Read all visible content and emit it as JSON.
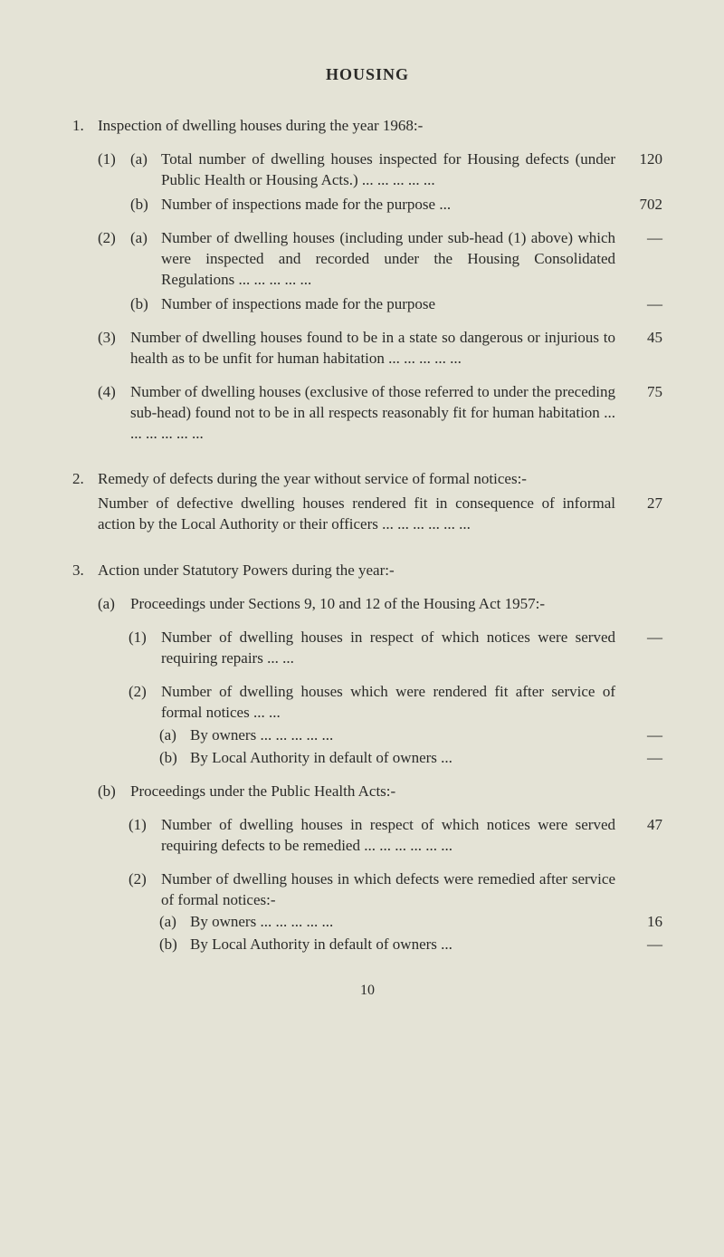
{
  "title": "HOUSING",
  "sec1": {
    "head": "Inspection of dwelling houses during the year 1968:-",
    "i1a": "Total number of dwelling houses inspected for Housing defects (under Public Health or Housing Acts.)   ...   ...   ...   ...   ...",
    "i1a_v": "120",
    "i1b": "Number of inspections made for the purpose ...",
    "i1b_v": "702",
    "i2a": "Number of dwelling houses (including under sub-head (1) above) which were inspected and recorded under the Housing Consolidated Regulations   ...   ...   ...   ...   ...",
    "i2a_v": "—",
    "i2b": "Number of inspections made for the purpose",
    "i2b_v": "—",
    "i3": "Number of dwelling houses found to be in a state so dangerous or injurious to health as to be unfit for human habitation ...   ...   ...   ...   ...",
    "i3_v": "45",
    "i4": "Number of dwelling houses (exclusive of those referred to under the preceding sub-head) found not to be in all respects reasonably fit for human habitation   ...   ...   ...   ...   ...   ...",
    "i4_v": "75"
  },
  "sec2": {
    "head": "Remedy of defects during the year without service of formal notices:-",
    "body": "Number of defective dwelling houses rendered fit in consequence of informal action by the Local Authority or their officers   ...   ...   ...   ...   ...   ...",
    "v": "27"
  },
  "sec3": {
    "head": "Action under Statutory Powers during the year:-",
    "a_head": "Proceedings under Sections 9, 10 and 12 of the Housing Act 1957:-",
    "a1": "Number of dwelling houses in respect of which notices were served requiring repairs ...   ...",
    "a1_v": "—",
    "a2": "Number of dwelling houses which were rendered fit after service of formal notices   ...   ...",
    "a2a": "By owners   ...   ...   ...   ...   ...",
    "a2a_v": "—",
    "a2b": "By Local Authority in default of owners ...",
    "a2b_v": "—",
    "b_head": "Proceedings under the Public Health Acts:-",
    "b1": "Number of dwelling houses in respect of which notices were served requiring defects to be remedied   ...   ...   ...   ...   ...   ...",
    "b1_v": "47",
    "b2": "Number of dwelling houses in which defects were remedied after service of formal notices:-",
    "b2a": "By owners   ...   ...   ...   ...   ...",
    "b2a_v": "16",
    "b2b": "By Local Authority in default of owners ...",
    "b2b_v": "—"
  },
  "lbl": {
    "n1": "1.",
    "n2": "2.",
    "n3": "3.",
    "p1": "(1)",
    "p2": "(2)",
    "p3": "(3)",
    "p4": "(4)",
    "pa": "(a)",
    "pb": "(b)"
  },
  "pagenum": "10"
}
